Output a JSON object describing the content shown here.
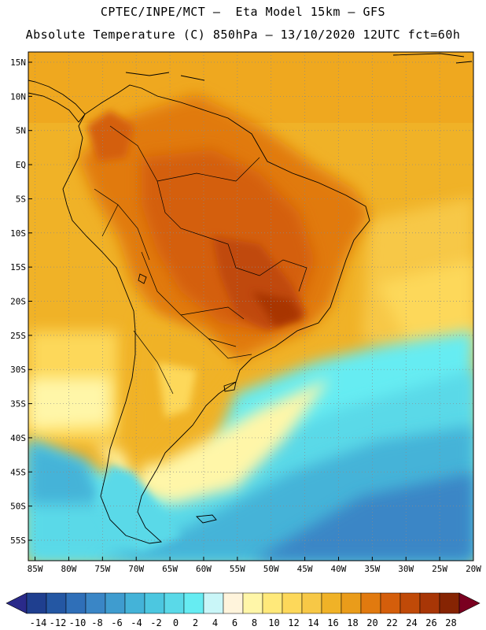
{
  "header": {
    "line1": "CPTEC/INPE/MCT –  Eta Model 15km – GFS",
    "line2": "Absolute Temperature (C) 850hPa – 13/10/2020 12UTC fct=60h"
  },
  "map": {
    "lat_labels": [
      "15N",
      "10N",
      "5N",
      "EQ",
      "5S",
      "10S",
      "15S",
      "20S",
      "25S",
      "30S",
      "35S",
      "40S",
      "45S",
      "50S",
      "55S"
    ],
    "lon_labels": [
      "85W",
      "80W",
      "75W",
      "70W",
      "65W",
      "60W",
      "55W",
      "50W",
      "45W",
      "40W",
      "35W",
      "30W",
      "25W",
      "20W"
    ],
    "extent": {
      "lon_min": -86,
      "lon_max": -20,
      "lat_min": -58,
      "lat_max": 16.5
    },
    "gridlines": true
  },
  "legend": {
    "labels": [
      "-14",
      "-12",
      "-10",
      "-8",
      "-6",
      "-4",
      "-2",
      "0",
      "2",
      "4",
      "6",
      "8",
      "10",
      "12",
      "14",
      "16",
      "18",
      "20",
      "22",
      "24",
      "26",
      "28"
    ],
    "colors": [
      "#1f3f8f",
      "#2457a3",
      "#2f6fb8",
      "#3a86c6",
      "#3f9ccf",
      "#44b3d8",
      "#4cc7e0",
      "#5ad9e8",
      "#66ecf2",
      "#c9f6f8",
      "#fff4dc",
      "#fff6a8",
      "#ffe97a",
      "#fdd85a",
      "#f7c846",
      "#f0b227",
      "#ea9c1a",
      "#e17a0f",
      "#d45e0b",
      "#c04a08",
      "#a83606",
      "#862403"
    ],
    "under_color": "#2a2a8a",
    "over_color": "#7a0020"
  }
}
